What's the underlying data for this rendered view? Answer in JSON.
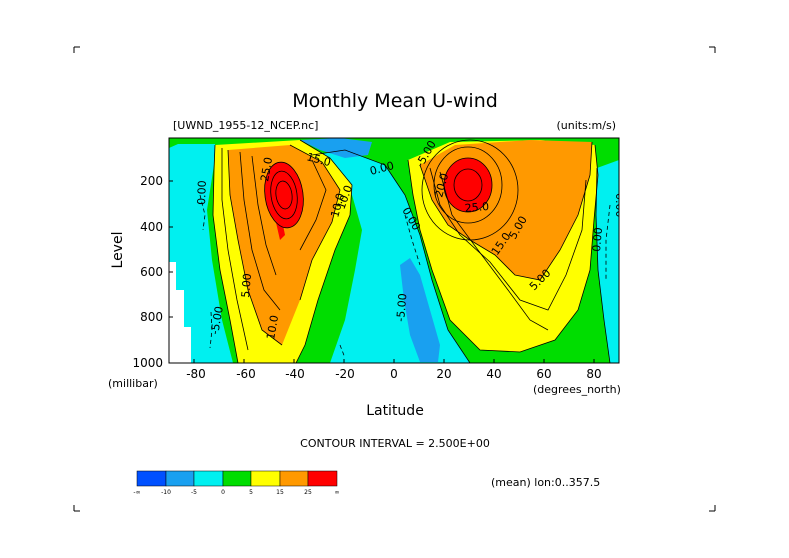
{
  "chart_data": {
    "type": "contour",
    "title": "Monthly Mean U-wind",
    "dataset": "[UWND_1955-12_NCEP.nc]",
    "units": "(units:m/s)",
    "xlabel": "Latitude",
    "ylabel": "Level",
    "x_unit": "(degrees_north)",
    "y_unit": "(millibar)",
    "x_ticks": [
      "-80",
      "-60",
      "-40",
      "-20",
      "0",
      "20",
      "40",
      "60",
      "80"
    ],
    "y_ticks": [
      "200",
      "400",
      "600",
      "800",
      "1000"
    ],
    "xlim": [
      -90,
      90
    ],
    "ylim_mb": [
      1000,
      10
    ],
    "contour_interval_text": "CONTOUR INTERVAL = 2.500E+00",
    "averaging_text": "(mean) lon:0..357.5",
    "contour_labels": [
      "0.00",
      "-5.00",
      "15.0",
      "25.0",
      "10.0",
      "5.00",
      "0.00",
      "20.0",
      "25.0",
      "-5.00",
      "15.0",
      "10.0",
      "5.00",
      "0.00",
      "5.00",
      "10.0",
      "0.00",
      "-5.00",
      "0.00"
    ],
    "legend": {
      "colors": [
        "#0050ff",
        "#19a0f0",
        "#00f0f0",
        "#00dd00",
        "#ffff00",
        "#ff9900",
        "#ff0000"
      ],
      "labels": [
        "-∞",
        "-10",
        "-5",
        "0",
        "5",
        "15",
        "25",
        "∞"
      ]
    }
  }
}
